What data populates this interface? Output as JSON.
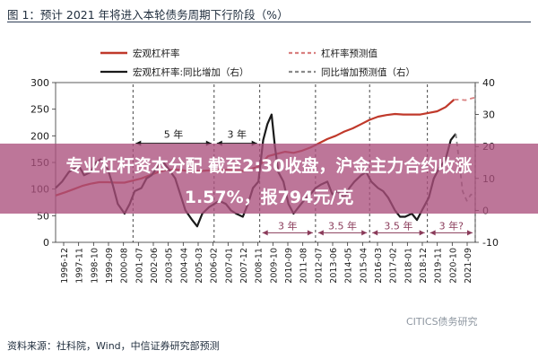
{
  "page": {
    "figure_title": "图 1：预计 2021 年将进入本轮债务周期下行阶段（%）",
    "source": "资料来源：社科院，Wind，中信证券研究部预测",
    "watermark": "CITICS债务研究"
  },
  "overlay": {
    "line1": "专业杠杆资本分配 截至2:30收盘，沪金主力合约收涨",
    "line2": "1.57%，报794元/克"
  },
  "chart_data": {
    "type": "line",
    "x_ticks": [
      "1996-12",
      "1997-11",
      "1998-10",
      "1999-09",
      "2000-08",
      "2001-07",
      "2002-06",
      "2003-05",
      "2004-04",
      "2005-03",
      "2006-02",
      "2007-01",
      "2007-12",
      "2008-11",
      "2009-10",
      "2010-09",
      "2011-08",
      "2012-07",
      "2013-06",
      "2014-05",
      "2015-04",
      "2016-03",
      "2017-02",
      "2018-01",
      "2018-12",
      "2019-11",
      "2020-10",
      "2021-09"
    ],
    "left_axis": {
      "ylim": [
        0,
        300
      ],
      "ticks": [
        0,
        50,
        100,
        150,
        200,
        250,
        300
      ]
    },
    "right_axis": {
      "ylim": [
        -10,
        40
      ],
      "ticks": [
        -10,
        0,
        10,
        20,
        30,
        40
      ]
    },
    "legend": [
      "宏观杠杆率",
      "杠杆率预测值",
      "宏观杠杆率:同比增加（右）",
      "同比增加预测值（右）"
    ],
    "series": [
      {
        "name": "宏观杠杆率",
        "axis": "left",
        "style": "solid",
        "color": "#c0392b",
        "x": [
          1996.92,
          1997.5,
          1998.0,
          1998.5,
          1999.0,
          1999.5,
          2000.0,
          2000.5,
          2001.0,
          2001.5,
          2002.0,
          2002.5,
          2003.0,
          2003.5,
          2004.0,
          2004.5,
          2005.0,
          2005.5,
          2006.0,
          2006.5,
          2007.0,
          2007.5,
          2008.0,
          2008.5,
          2008.92,
          2009.5,
          2010.0,
          2010.5,
          2011.0,
          2011.5,
          2012.0,
          2012.5,
          2013.0,
          2013.5,
          2014.0,
          2014.5,
          2015.0,
          2015.5,
          2016.0,
          2016.5,
          2017.0,
          2017.5,
          2018.0,
          2018.5,
          2019.0,
          2019.5,
          2020.0,
          2020.5
        ],
        "y": [
          88,
          94,
          100,
          106,
          110,
          113,
          113,
          112,
          112,
          116,
          120,
          126,
          132,
          136,
          137,
          135,
          133,
          134,
          135,
          136,
          136,
          135,
          134,
          138,
          142,
          162,
          166,
          170,
          168,
          172,
          178,
          186,
          194,
          200,
          208,
          214,
          222,
          230,
          236,
          239,
          241,
          240,
          240,
          240,
          243,
          246,
          254,
          268
        ]
      },
      {
        "name": "杠杆率预测值",
        "axis": "left",
        "style": "dashed",
        "color": "#d98080",
        "x": [
          2020.5,
          2020.83,
          2021.17,
          2021.5,
          2021.75
        ],
        "y": [
          268,
          268,
          267,
          270,
          272
        ]
      },
      {
        "name": "宏观杠杆率:同比增加（右）",
        "axis": "right",
        "style": "solid",
        "color": "#1a1a1a",
        "x": [
          1996.92,
          1997.3,
          1997.7,
          1998.0,
          1998.3,
          1998.6,
          1999.0,
          1999.3,
          1999.6,
          2000.0,
          2000.3,
          2000.6,
          2001.0,
          2001.3,
          2001.6,
          2002.0,
          2002.3,
          2002.6,
          2003.0,
          2003.3,
          2003.6,
          2004.0,
          2004.3,
          2004.6,
          2005.0,
          2005.3,
          2005.6,
          2006.0,
          2006.3,
          2006.6,
          2007.0,
          2007.3,
          2007.6,
          2008.0,
          2008.3,
          2008.6,
          2008.92,
          2009.2,
          2009.45,
          2009.7,
          2009.9,
          2010.1,
          2010.4,
          2010.7,
          2011.0,
          2011.3,
          2011.6,
          2012.0,
          2012.3,
          2012.6,
          2013.0,
          2013.3,
          2013.6,
          2014.0,
          2014.3,
          2014.6,
          2015.0,
          2015.3,
          2015.6,
          2016.0,
          2016.3,
          2016.6,
          2017.0,
          2017.3,
          2017.6,
          2018.0,
          2018.3,
          2018.6,
          2019.0,
          2019.3,
          2019.6,
          2020.0,
          2020.3,
          2020.6
        ],
        "y": [
          7,
          9,
          12,
          13,
          14,
          11,
          12,
          15,
          16,
          13,
          8,
          2,
          -1,
          2,
          6,
          7,
          10,
          11,
          14,
          15,
          13,
          10,
          5,
          0,
          -3,
          -5,
          -1,
          1,
          2,
          3,
          2,
          0,
          -1,
          -2,
          2,
          7,
          9,
          22,
          27,
          30,
          20,
          12,
          9,
          2,
          -1,
          1,
          3,
          5,
          7,
          8,
          9,
          5,
          6,
          4,
          7,
          9,
          11,
          12,
          9,
          7,
          6,
          4,
          0,
          -2,
          -2,
          -1,
          -3,
          0,
          4,
          10,
          13,
          16,
          22,
          24
        ]
      },
      {
        "name": "同比增加预测值（右）",
        "axis": "right",
        "style": "dashed",
        "color": "#8a8a8a",
        "x": [
          2020.6,
          2020.83,
          2021.0,
          2021.25,
          2021.5,
          2021.75
        ],
        "y": [
          24,
          14,
          6,
          3,
          5,
          4
        ]
      }
    ],
    "brackets": [
      {
        "label": "5 年",
        "from": 2001.5,
        "to": 2006.3,
        "y_right": 21
      },
      {
        "label": "3 年",
        "from": 2006.3,
        "to": 2009.0,
        "y_right": 21
      },
      {
        "label": "3 年",
        "from": 2009.0,
        "to": 2012.3,
        "y_right": -7
      },
      {
        "label": "3.5 年",
        "from": 2012.3,
        "to": 2015.5,
        "y_right": -7
      },
      {
        "label": "3.5 年",
        "from": 2015.5,
        "to": 2018.92,
        "y_right": -7
      },
      {
        "label": "3 年?",
        "from": 2018.92,
        "to": 2021.75,
        "y_right": -7
      }
    ],
    "reference_lines_x": [
      2001.5,
      2006.3,
      2009.0,
      2012.3,
      2015.5,
      2018.92,
      2021.75
    ]
  }
}
